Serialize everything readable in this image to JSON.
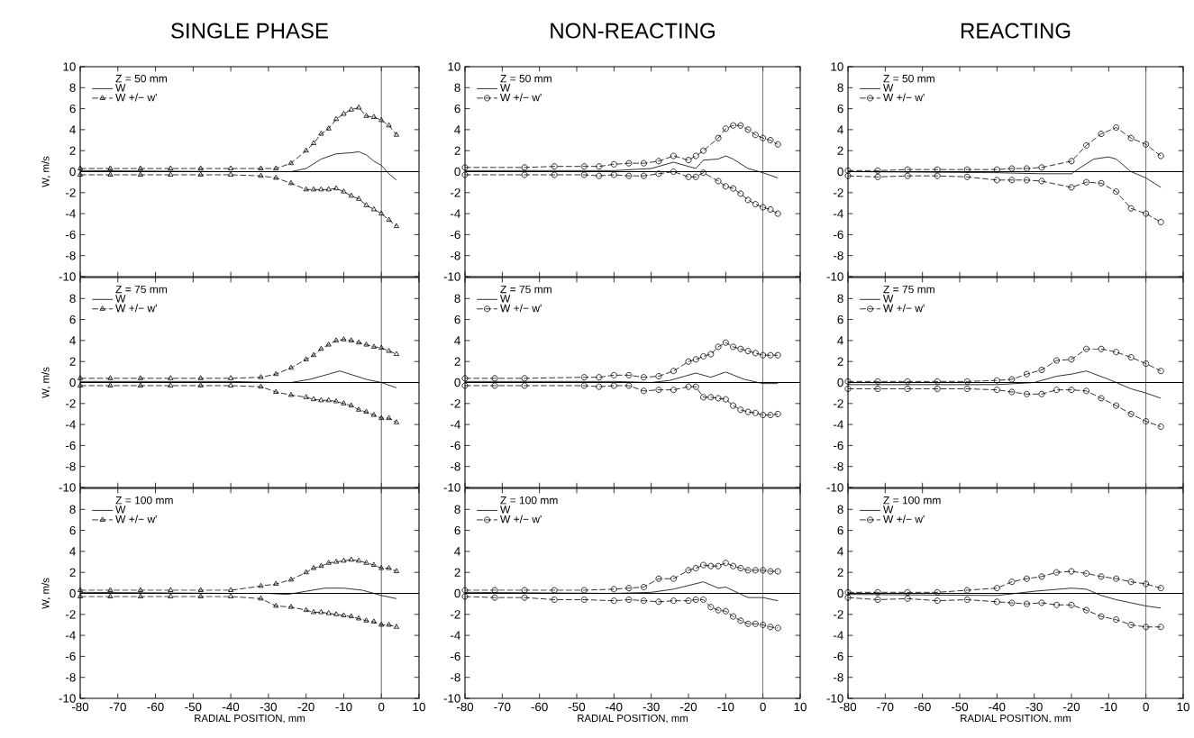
{
  "chart_data": [
    {
      "type": "line",
      "title": "SINGLE PHASE",
      "legend_title": "Z = 50 mm",
      "ylabel": "W, m/s",
      "xlim": [
        -80,
        10
      ],
      "ylim": [
        -10,
        10
      ],
      "xticks": [
        -80,
        -70,
        -60,
        -50,
        -40,
        -30,
        -20,
        -10,
        0,
        10
      ],
      "yticks": [
        -10,
        -8,
        -6,
        -4,
        -2,
        0,
        2,
        4,
        6,
        8,
        10
      ],
      "tick_labels": "y",
      "legend": "top left",
      "ref_lines": [
        {
          "axis": "x",
          "value": 0
        },
        {
          "axis": "y",
          "value": 0
        }
      ],
      "series": [
        {
          "name": "W",
          "color": "#000000",
          "marker": "none",
          "line_style": "solid",
          "x": [
            -80,
            -40,
            -30,
            -24,
            -20,
            -16,
            -12,
            -8,
            -6,
            -4,
            -2,
            0,
            2,
            4
          ],
          "values": [
            0.1,
            0,
            0,
            0,
            0.3,
            1.2,
            1.7,
            1.8,
            1.9,
            1.6,
            1.0,
            0.6,
            -0.2,
            -0.8
          ]
        },
        {
          "name": "W +/− w'",
          "color": "#000000",
          "marker": "triangle",
          "line_style": "dashed",
          "x": [
            -80,
            -72,
            -64,
            -56,
            -48,
            -40,
            -32,
            -28,
            -24,
            -20,
            -18,
            -16,
            -14,
            -12,
            -10,
            -8,
            -6,
            -4,
            -2,
            0,
            2,
            4
          ],
          "values": [
            0.3,
            0.3,
            0.3,
            0.3,
            0.3,
            0.3,
            0.3,
            0.3,
            0.8,
            2.0,
            2.7,
            3.6,
            4.1,
            5.0,
            5.5,
            5.9,
            6.1,
            5.3,
            5.2,
            4.9,
            4.4,
            3.5
          ]
        },
        {
          "color": "#000000",
          "marker": "triangle",
          "line_style": "dashed",
          "x": [
            -80,
            -72,
            -64,
            -56,
            -48,
            -40,
            -32,
            -28,
            -24,
            -20,
            -18,
            -16,
            -14,
            -12,
            -10,
            -8,
            -6,
            -4,
            -2,
            0,
            2,
            4
          ],
          "values": [
            -0.3,
            -0.3,
            -0.3,
            -0.3,
            -0.3,
            -0.3,
            -0.4,
            -0.6,
            -1.1,
            -1.7,
            -1.7,
            -1.7,
            -1.7,
            -1.6,
            -1.9,
            -2.3,
            -2.6,
            -3.2,
            -3.6,
            -4.0,
            -4.6,
            -5.2
          ]
        }
      ]
    },
    {
      "type": "line",
      "title": "NON-REACTING",
      "legend_title": "Z = 50 mm",
      "xlim": [
        -80,
        10
      ],
      "ylim": [
        -10,
        10
      ],
      "xticks": [
        -80,
        -70,
        -60,
        -50,
        -40,
        -30,
        -20,
        -10,
        0,
        10
      ],
      "yticks": [
        -10,
        -8,
        -6,
        -4,
        -2,
        0,
        2,
        4,
        6,
        8,
        10
      ],
      "tick_labels": "y",
      "legend": "top left",
      "ref_lines": [
        {
          "axis": "x",
          "value": 0
        },
        {
          "axis": "y",
          "value": 0
        }
      ],
      "series": [
        {
          "name": "W",
          "color": "#000000",
          "marker": "none",
          "line_style": "solid",
          "x": [
            -80,
            -40,
            -30,
            -24,
            -18,
            -16,
            -12,
            -10,
            -8,
            -4,
            0,
            4
          ],
          "values": [
            0.1,
            0.1,
            0.3,
            0.9,
            0.3,
            1.1,
            1.2,
            1.5,
            1.2,
            0.3,
            -0.1,
            -0.6
          ]
        },
        {
          "name": "W +/− w'",
          "color": "#000000",
          "marker": "circle",
          "line_style": "dashed",
          "x": [
            -80,
            -64,
            -56,
            -48,
            -44,
            -40,
            -36,
            -32,
            -28,
            -24,
            -20,
            -18,
            -16,
            -12,
            -10,
            -8,
            -6,
            -4,
            -2,
            0,
            2,
            4
          ],
          "values": [
            0.4,
            0.4,
            0.5,
            0.5,
            0.5,
            0.7,
            0.8,
            0.8,
            1.0,
            1.5,
            1.1,
            1.5,
            2.0,
            3.2,
            4.1,
            4.4,
            4.4,
            4.0,
            3.5,
            3.2,
            3.0,
            2.6
          ]
        },
        {
          "color": "#000000",
          "marker": "circle",
          "line_style": "dashed",
          "x": [
            -80,
            -64,
            -56,
            -48,
            -44,
            -40,
            -36,
            -32,
            -28,
            -24,
            -20,
            -18,
            -16,
            -12,
            -10,
            -8,
            -6,
            -4,
            -2,
            0,
            2,
            4
          ],
          "values": [
            -0.3,
            -0.3,
            -0.3,
            -0.3,
            -0.4,
            -0.3,
            -0.4,
            -0.4,
            -0.2,
            0.0,
            -0.5,
            -0.5,
            -0.1,
            -0.9,
            -1.4,
            -1.6,
            -2.1,
            -2.7,
            -3.1,
            -3.4,
            -3.6,
            -4.0
          ]
        }
      ]
    },
    {
      "type": "line",
      "title": "REACTING",
      "legend_title": "Z = 50 mm",
      "xlim": [
        -80,
        10
      ],
      "ylim": [
        -10,
        10
      ],
      "xticks": [
        -80,
        -70,
        -60,
        -50,
        -40,
        -30,
        -20,
        -10,
        0,
        10
      ],
      "yticks": [
        -10,
        -8,
        -6,
        -4,
        -2,
        0,
        2,
        4,
        6,
        8,
        10
      ],
      "tick_labels": "y",
      "legend": "top left",
      "ref_lines": [
        {
          "axis": "x",
          "value": 0
        },
        {
          "axis": "y",
          "value": 0
        }
      ],
      "series": [
        {
          "name": "W",
          "color": "#000000",
          "marker": "none",
          "line_style": "solid",
          "x": [
            -80,
            -40,
            -28,
            -20,
            -18,
            -14,
            -10,
            -8,
            -4,
            0,
            4
          ],
          "values": [
            0,
            -0.1,
            -0.2,
            -0.2,
            0.3,
            1.2,
            1.4,
            1.2,
            0,
            -0.6,
            -1.5
          ]
        },
        {
          "name": "W +/− w'",
          "color": "#000000",
          "marker": "circle",
          "line_style": "dashed",
          "x": [
            -80,
            -72,
            -64,
            -56,
            -48,
            -40,
            -36,
            -32,
            -28,
            -20,
            -16,
            -12,
            -8,
            -4,
            0,
            4
          ],
          "values": [
            0.1,
            0.1,
            0.2,
            0.2,
            0.2,
            0.2,
            0.3,
            0.3,
            0.4,
            1.0,
            2.5,
            3.6,
            4.2,
            3.2,
            2.6,
            1.5
          ]
        },
        {
          "color": "#000000",
          "marker": "circle",
          "line_style": "dashed",
          "x": [
            -80,
            -72,
            -64,
            -56,
            -48,
            -40,
            -36,
            -32,
            -28,
            -20,
            -16,
            -12,
            -8,
            -4,
            0,
            4
          ],
          "values": [
            -0.4,
            -0.5,
            -0.4,
            -0.4,
            -0.5,
            -0.8,
            -0.8,
            -0.8,
            -0.9,
            -1.5,
            -1.0,
            -1.1,
            -1.9,
            -3.5,
            -4.0,
            -4.8
          ]
        }
      ]
    },
    {
      "type": "line",
      "legend_title": "Z = 75 mm",
      "ylabel": "W, m/s",
      "xlim": [
        -80,
        10
      ],
      "ylim": [
        -10,
        10
      ],
      "xticks": [
        -80,
        -70,
        -60,
        -50,
        -40,
        -30,
        -20,
        -10,
        0,
        10
      ],
      "yticks": [
        -10,
        -8,
        -6,
        -4,
        -2,
        0,
        2,
        4,
        6,
        8
      ],
      "tick_labels": "y",
      "legend": "top left",
      "ref_lines": [
        {
          "axis": "x",
          "value": 0
        },
        {
          "axis": "y",
          "value": 0
        }
      ],
      "series": [
        {
          "name": "W",
          "color": "#000000",
          "marker": "none",
          "line_style": "solid",
          "x": [
            -80,
            -40,
            -28,
            -24,
            -19,
            -11,
            -4,
            0,
            4
          ],
          "values": [
            0.1,
            0.1,
            0,
            0,
            0.3,
            1.1,
            0.3,
            0,
            -0.5
          ]
        },
        {
          "name": "W +/− w'",
          "color": "#000000",
          "marker": "triangle",
          "line_style": "dashed",
          "x": [
            -80,
            -72,
            -64,
            -56,
            -48,
            -40,
            -32,
            -28,
            -24,
            -20,
            -18,
            -16,
            -14,
            -12,
            -10,
            -8,
            -6,
            -4,
            -2,
            0,
            2,
            4
          ],
          "values": [
            0.4,
            0.4,
            0.4,
            0.4,
            0.4,
            0.4,
            0.5,
            0.8,
            1.4,
            2.2,
            2.6,
            3.2,
            3.6,
            4.0,
            4.1,
            4.0,
            3.8,
            3.6,
            3.4,
            3.3,
            3.0,
            2.7
          ]
        },
        {
          "color": "#000000",
          "marker": "triangle",
          "line_style": "dashed",
          "x": [
            -80,
            -72,
            -64,
            -56,
            -48,
            -40,
            -32,
            -28,
            -24,
            -20,
            -18,
            -16,
            -14,
            -12,
            -10,
            -8,
            -6,
            -4,
            -2,
            0,
            2,
            4
          ],
          "values": [
            -0.3,
            -0.3,
            -0.3,
            -0.3,
            -0.3,
            -0.3,
            -0.4,
            -0.9,
            -1.2,
            -1.4,
            -1.6,
            -1.7,
            -1.7,
            -1.8,
            -2.0,
            -2.2,
            -2.6,
            -2.8,
            -3.1,
            -3.4,
            -3.4,
            -3.8
          ]
        }
      ]
    },
    {
      "type": "line",
      "legend_title": "Z = 75 mm",
      "xlim": [
        -80,
        10
      ],
      "ylim": [
        -10,
        10
      ],
      "xticks": [
        -80,
        -70,
        -60,
        -50,
        -40,
        -30,
        -20,
        -10,
        0,
        10
      ],
      "yticks": [
        -10,
        -8,
        -6,
        -4,
        -2,
        0,
        2,
        4,
        6,
        8
      ],
      "tick_labels": "y",
      "legend": "top left",
      "ref_lines": [
        {
          "axis": "x",
          "value": 0
        },
        {
          "axis": "y",
          "value": 0
        }
      ],
      "series": [
        {
          "name": "W",
          "color": "#000000",
          "marker": "none",
          "line_style": "solid",
          "x": [
            -80,
            -40,
            -30,
            -25,
            -18,
            -14,
            -10,
            -5,
            0,
            4
          ],
          "values": [
            0.1,
            0.1,
            0,
            0.2,
            0.9,
            0.5,
            1.0,
            0.3,
            -0.1,
            -0.1
          ]
        },
        {
          "name": "W +/− w'",
          "color": "#000000",
          "marker": "circle",
          "line_style": "dashed",
          "x": [
            -80,
            -72,
            -64,
            -48,
            -44,
            -40,
            -36,
            -32,
            -28,
            -24,
            -20,
            -18,
            -16,
            -14,
            -12,
            -10,
            -8,
            -6,
            -4,
            -2,
            0,
            2,
            4
          ],
          "values": [
            0.4,
            0.4,
            0.4,
            0.5,
            0.5,
            0.7,
            0.7,
            0.5,
            0.6,
            1.1,
            2.0,
            2.2,
            2.5,
            2.7,
            3.4,
            3.8,
            3.4,
            3.2,
            3.0,
            2.8,
            2.6,
            2.6,
            2.6
          ]
        },
        {
          "color": "#000000",
          "marker": "circle",
          "line_style": "dashed",
          "x": [
            -80,
            -72,
            -64,
            -48,
            -44,
            -40,
            -36,
            -32,
            -28,
            -24,
            -20,
            -18,
            -16,
            -14,
            -12,
            -10,
            -8,
            -6,
            -4,
            -2,
            0,
            2,
            4
          ],
          "values": [
            -0.3,
            -0.3,
            -0.3,
            -0.3,
            -0.4,
            -0.3,
            -0.3,
            -0.8,
            -0.7,
            -0.7,
            -0.4,
            -0.4,
            -1.4,
            -1.4,
            -1.5,
            -1.6,
            -2.2,
            -2.6,
            -2.8,
            -2.9,
            -3.1,
            -3.1,
            -3.0
          ]
        }
      ]
    },
    {
      "type": "line",
      "legend_title": "Z = 75 mm",
      "xlim": [
        -80,
        10
      ],
      "ylim": [
        -10,
        10
      ],
      "xticks": [
        -80,
        -70,
        -60,
        -50,
        -40,
        -30,
        -20,
        -10,
        0,
        10
      ],
      "yticks": [
        -10,
        -8,
        -6,
        -4,
        -2,
        0,
        2,
        4,
        6,
        8
      ],
      "tick_labels": "y",
      "legend": "top left",
      "ref_lines": [
        {
          "axis": "x",
          "value": 0
        },
        {
          "axis": "y",
          "value": 0
        }
      ],
      "series": [
        {
          "name": "W",
          "color": "#000000",
          "marker": "none",
          "line_style": "solid",
          "x": [
            -80,
            -40,
            -30,
            -24,
            -20,
            -16,
            -10,
            -4,
            0,
            4
          ],
          "values": [
            -0.2,
            -0.2,
            0,
            0.6,
            0.8,
            1.1,
            0.3,
            -0.6,
            -1.0,
            -1.5
          ]
        },
        {
          "name": "W +/− w'",
          "color": "#000000",
          "marker": "circle",
          "line_style": "dashed",
          "x": [
            -80,
            -72,
            -64,
            -56,
            -48,
            -40,
            -36,
            -32,
            -28,
            -24,
            -20,
            -16,
            -12,
            -8,
            -4,
            0,
            4
          ],
          "values": [
            0.1,
            0.1,
            0.1,
            0.1,
            0.1,
            0.2,
            0.3,
            0.8,
            1.2,
            2.1,
            2.2,
            3.2,
            3.2,
            2.9,
            2.4,
            1.8,
            1.1
          ]
        },
        {
          "color": "#000000",
          "marker": "circle",
          "line_style": "dashed",
          "x": [
            -80,
            -72,
            -64,
            -56,
            -48,
            -40,
            -36,
            -32,
            -28,
            -24,
            -20,
            -16,
            -12,
            -8,
            -4,
            0,
            4
          ],
          "values": [
            -0.6,
            -0.6,
            -0.6,
            -0.6,
            -0.6,
            -0.7,
            -0.9,
            -1.1,
            -1.1,
            -0.7,
            -0.7,
            -0.8,
            -1.5,
            -2.2,
            -3.0,
            -3.7,
            -4.2
          ]
        }
      ]
    },
    {
      "type": "line",
      "legend_title": "Z = 100 mm",
      "ylabel": "W, m/s",
      "xlabel": "RADIAL POSITION, mm",
      "xlim": [
        -80,
        10
      ],
      "ylim": [
        -10,
        10
      ],
      "xticks": [
        -80,
        -70,
        -60,
        -50,
        -40,
        -30,
        -20,
        -10,
        0,
        10
      ],
      "yticks": [
        -10,
        -8,
        -6,
        -4,
        -2,
        0,
        2,
        4,
        6,
        8
      ],
      "legend": "top left",
      "ref_lines": [
        {
          "axis": "x",
          "value": 0
        },
        {
          "axis": "y",
          "value": 0
        }
      ],
      "series": [
        {
          "name": "W",
          "color": "#000000",
          "marker": "none",
          "line_style": "solid",
          "x": [
            -80,
            -40,
            -30,
            -25,
            -20,
            -15,
            -10,
            -5,
            0,
            4
          ],
          "values": [
            0.1,
            0,
            0,
            -0.1,
            0.2,
            0.5,
            0.5,
            0.3,
            -0.2,
            -0.5
          ]
        },
        {
          "name": "W +/− w'",
          "color": "#000000",
          "marker": "triangle",
          "line_style": "dashed",
          "x": [
            -80,
            -72,
            -64,
            -56,
            -48,
            -40,
            -32,
            -28,
            -24,
            -20,
            -18,
            -16,
            -14,
            -12,
            -10,
            -8,
            -6,
            -4,
            -2,
            0,
            2,
            4
          ],
          "values": [
            0.3,
            0.3,
            0.3,
            0.3,
            0.3,
            0.3,
            0.7,
            0.9,
            1.3,
            2.0,
            2.4,
            2.6,
            2.9,
            3.0,
            3.1,
            3.2,
            3.1,
            2.9,
            2.7,
            2.4,
            2.4,
            2.1
          ]
        },
        {
          "color": "#000000",
          "marker": "triangle",
          "line_style": "dashed",
          "x": [
            -80,
            -72,
            -64,
            -56,
            -48,
            -40,
            -32,
            -28,
            -24,
            -20,
            -18,
            -16,
            -14,
            -12,
            -10,
            -8,
            -6,
            -4,
            -2,
            0,
            2,
            4
          ],
          "values": [
            -0.3,
            -0.3,
            -0.3,
            -0.3,
            -0.3,
            -0.3,
            -0.5,
            -1.2,
            -1.3,
            -1.6,
            -1.8,
            -1.8,
            -1.9,
            -2.0,
            -2.1,
            -2.2,
            -2.4,
            -2.6,
            -2.7,
            -3.0,
            -3.0,
            -3.2
          ]
        }
      ]
    },
    {
      "type": "line",
      "legend_title": "Z = 100 mm",
      "xlabel": "RADIAL POSITION, mm",
      "xlim": [
        -80,
        10
      ],
      "ylim": [
        -10,
        10
      ],
      "xticks": [
        -80,
        -70,
        -60,
        -50,
        -40,
        -30,
        -20,
        -10,
        0,
        10
      ],
      "yticks": [
        -10,
        -8,
        -6,
        -4,
        -2,
        0,
        2,
        4,
        6,
        8
      ],
      "legend": "top left",
      "ref_lines": [
        {
          "axis": "x",
          "value": 0
        },
        {
          "axis": "y",
          "value": 0
        }
      ],
      "series": [
        {
          "name": "W",
          "color": "#000000",
          "marker": "none",
          "line_style": "solid",
          "x": [
            -80,
            -40,
            -30,
            -24,
            -16,
            -12,
            -10,
            -4,
            0,
            4
          ],
          "values": [
            0.1,
            0,
            0.1,
            0.4,
            1.1,
            0.5,
            0.6,
            -0.4,
            -0.4,
            -0.7
          ]
        },
        {
          "name": "W +/− w'",
          "color": "#000000",
          "marker": "circle",
          "line_style": "dashed",
          "x": [
            -80,
            -72,
            -64,
            -56,
            -48,
            -40,
            -36,
            -32,
            -28,
            -24,
            -20,
            -18,
            -16,
            -14,
            -12,
            -10,
            -8,
            -6,
            -4,
            -2,
            0,
            2,
            4
          ],
          "values": [
            0.3,
            0.3,
            0.3,
            0.3,
            0.3,
            0.4,
            0.5,
            0.6,
            1.4,
            1.4,
            2.2,
            2.4,
            2.7,
            2.6,
            2.6,
            2.9,
            2.6,
            2.4,
            2.2,
            2.2,
            2.2,
            2.1,
            2.1
          ]
        },
        {
          "color": "#000000",
          "marker": "circle",
          "line_style": "dashed",
          "x": [
            -80,
            -72,
            -64,
            -56,
            -48,
            -40,
            -36,
            -32,
            -28,
            -24,
            -20,
            -18,
            -16,
            -14,
            -12,
            -10,
            -8,
            -6,
            -4,
            -2,
            0,
            2,
            4
          ],
          "values": [
            -0.3,
            -0.4,
            -0.4,
            -0.6,
            -0.6,
            -0.7,
            -0.6,
            -0.7,
            -0.8,
            -0.7,
            -0.7,
            -0.6,
            -0.6,
            -1.3,
            -1.6,
            -1.7,
            -2.2,
            -2.6,
            -2.9,
            -2.9,
            -3.0,
            -3.2,
            -3.3
          ]
        }
      ]
    },
    {
      "type": "line",
      "legend_title": "Z = 100 mm",
      "xlabel": "RADIAL POSITION, mm",
      "xlim": [
        -80,
        10
      ],
      "ylim": [
        -10,
        10
      ],
      "xticks": [
        -80,
        -70,
        -60,
        -50,
        -40,
        -30,
        -20,
        -10,
        0,
        10
      ],
      "yticks": [
        -10,
        -8,
        -6,
        -4,
        -2,
        0,
        2,
        4,
        6,
        8
      ],
      "legend": "top left",
      "ref_lines": [
        {
          "axis": "x",
          "value": 0
        },
        {
          "axis": "y",
          "value": 0
        }
      ],
      "series": [
        {
          "name": "W",
          "color": "#000000",
          "marker": "none",
          "line_style": "solid",
          "x": [
            -80,
            -40,
            -30,
            -20,
            -16,
            -12,
            -8,
            0,
            4
          ],
          "values": [
            -0.1,
            -0.2,
            0.2,
            0.5,
            0.4,
            -0.2,
            -0.6,
            -1.2,
            -1.4
          ]
        },
        {
          "name": "W +/− w'",
          "color": "#000000",
          "marker": "circle",
          "line_style": "dashed",
          "x": [
            -80,
            -72,
            -64,
            -56,
            -48,
            -40,
            -36,
            -32,
            -28,
            -24,
            -20,
            -16,
            -12,
            -8,
            -4,
            0,
            4
          ],
          "values": [
            0.1,
            0.1,
            0.1,
            0.1,
            0.3,
            0.5,
            1.1,
            1.4,
            1.6,
            2.0,
            2.1,
            1.9,
            1.6,
            1.4,
            1.1,
            0.9,
            0.5
          ]
        },
        {
          "color": "#000000",
          "marker": "circle",
          "line_style": "dashed",
          "x": [
            -80,
            -72,
            -64,
            -56,
            -48,
            -40,
            -36,
            -32,
            -28,
            -24,
            -20,
            -16,
            -12,
            -8,
            -4,
            0,
            4
          ],
          "values": [
            -0.4,
            -0.6,
            -0.5,
            -0.7,
            -0.6,
            -0.8,
            -0.9,
            -1.0,
            -0.9,
            -1.1,
            -1.1,
            -1.6,
            -2.2,
            -2.5,
            -3.0,
            -3.2,
            -3.2
          ]
        }
      ]
    }
  ]
}
